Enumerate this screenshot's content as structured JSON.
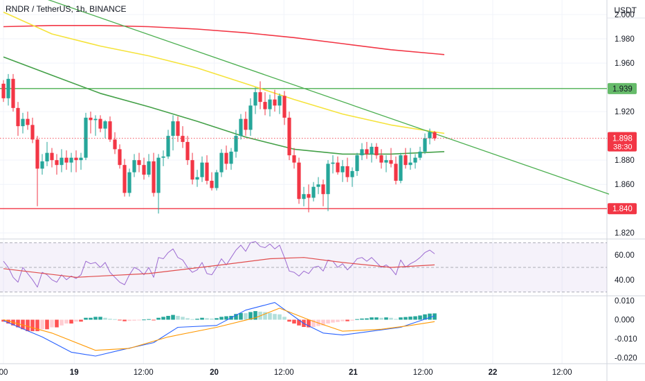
{
  "header": {
    "symbol": "RNDR / TetherUS, 1h, BINANCE",
    "quote_currency": "USDT"
  },
  "colors": {
    "up": "#26a69a",
    "down": "#f23645",
    "ma_red": "#f23645",
    "ma_yellow": "#f5e33b",
    "ma_green": "#43a047",
    "trend": "#4caf50",
    "rsi": "#9c6ad1",
    "rsi_ma": "#e04c4c",
    "macd": "#2962ff",
    "signal": "#ff9800"
  },
  "chart_data": [
    {
      "type": "candlestick",
      "panel": "price",
      "ylim": [
        1.815,
        2.012
      ],
      "y_ticks": [
        "2.000",
        "1.980",
        "1.960",
        "1.920",
        "1.880",
        "1.860",
        "1.820"
      ],
      "x_ticks": [
        "00",
        "19",
        "12:00",
        "20",
        "12:00",
        "21",
        "12:00",
        "22",
        "12:00"
      ],
      "candles": [
        [
          1.943,
          1.946,
          1.928,
          1.931
        ],
        [
          1.931,
          1.951,
          1.925,
          1.947
        ],
        [
          1.947,
          1.951,
          1.92,
          1.923
        ],
        [
          1.923,
          1.928,
          1.9,
          1.908
        ],
        [
          1.908,
          1.919,
          1.902,
          1.914
        ],
        [
          1.914,
          1.92,
          1.905,
          1.909
        ],
        [
          1.909,
          1.915,
          1.894,
          1.897
        ],
        [
          1.897,
          1.9,
          1.842,
          1.873
        ],
        [
          1.873,
          1.885,
          1.868,
          1.879
        ],
        [
          1.879,
          1.895,
          1.875,
          1.886
        ],
        [
          1.886,
          1.89,
          1.874,
          1.88
        ],
        [
          1.88,
          1.885,
          1.868,
          1.876
        ],
        [
          1.876,
          1.889,
          1.87,
          1.882
        ],
        [
          1.882,
          1.888,
          1.872,
          1.878
        ],
        [
          1.878,
          1.886,
          1.87,
          1.882
        ],
        [
          1.882,
          1.888,
          1.87,
          1.88
        ],
        [
          1.88,
          1.886,
          1.872,
          1.882
        ],
        [
          1.882,
          1.919,
          1.88,
          1.915
        ],
        [
          1.915,
          1.92,
          1.902,
          1.913
        ],
        [
          1.913,
          1.917,
          1.9,
          1.914
        ],
        [
          1.914,
          1.917,
          1.903,
          1.906
        ],
        [
          1.906,
          1.913,
          1.898,
          1.912
        ],
        [
          1.912,
          1.916,
          1.895,
          1.897
        ],
        [
          1.897,
          1.903,
          1.885,
          1.889
        ],
        [
          1.889,
          1.893,
          1.873,
          1.876
        ],
        [
          1.876,
          1.881,
          1.85,
          1.853
        ],
        [
          1.853,
          1.873,
          1.85,
          1.87
        ],
        [
          1.87,
          1.885,
          1.866,
          1.88
        ],
        [
          1.88,
          1.886,
          1.87,
          1.876
        ],
        [
          1.876,
          1.882,
          1.864,
          1.868
        ],
        [
          1.868,
          1.885,
          1.866,
          1.879
        ],
        [
          1.879,
          1.886,
          1.85,
          1.853
        ],
        [
          1.853,
          1.885,
          1.836,
          1.882
        ],
        [
          1.882,
          1.888,
          1.875,
          1.883
        ],
        [
          1.883,
          1.905,
          1.881,
          1.9
        ],
        [
          1.9,
          1.917,
          1.888,
          1.912
        ],
        [
          1.912,
          1.916,
          1.895,
          1.9
        ],
        [
          1.9,
          1.908,
          1.89,
          1.895
        ],
        [
          1.895,
          1.9,
          1.876,
          1.88
        ],
        [
          1.88,
          1.886,
          1.86,
          1.864
        ],
        [
          1.864,
          1.872,
          1.858,
          1.866
        ],
        [
          1.866,
          1.883,
          1.862,
          1.878
        ],
        [
          1.878,
          1.884,
          1.86,
          1.863
        ],
        [
          1.863,
          1.87,
          1.855,
          1.857
        ],
        [
          1.857,
          1.872,
          1.855,
          1.87
        ],
        [
          1.87,
          1.889,
          1.866,
          1.886
        ],
        [
          1.886,
          1.892,
          1.872,
          1.877
        ],
        [
          1.877,
          1.89,
          1.872,
          1.887
        ],
        [
          1.887,
          1.905,
          1.882,
          1.9
        ],
        [
          1.9,
          1.918,
          1.897,
          1.914
        ],
        [
          1.914,
          1.92,
          1.9,
          1.905
        ],
        [
          1.905,
          1.931,
          1.9,
          1.925
        ],
        [
          1.925,
          1.94,
          1.918,
          1.936
        ],
        [
          1.936,
          1.945,
          1.922,
          1.928
        ],
        [
          1.928,
          1.936,
          1.917,
          1.922
        ],
        [
          1.922,
          1.934,
          1.916,
          1.93
        ],
        [
          1.93,
          1.938,
          1.92,
          1.925
        ],
        [
          1.925,
          1.935,
          1.918,
          1.933
        ],
        [
          1.933,
          1.937,
          1.909,
          1.915
        ],
        [
          1.915,
          1.92,
          1.88,
          1.884
        ],
        [
          1.884,
          1.89,
          1.873,
          1.878
        ],
        [
          1.878,
          1.882,
          1.844,
          1.848
        ],
        [
          1.848,
          1.858,
          1.842,
          1.852
        ],
        [
          1.852,
          1.86,
          1.837,
          1.849
        ],
        [
          1.849,
          1.862,
          1.846,
          1.858
        ],
        [
          1.858,
          1.866,
          1.852,
          1.86
        ],
        [
          1.86,
          1.864,
          1.842,
          1.852
        ],
        [
          1.852,
          1.88,
          1.838,
          1.877
        ],
        [
          1.877,
          1.884,
          1.869,
          1.878
        ],
        [
          1.878,
          1.883,
          1.868,
          1.87
        ],
        [
          1.87,
          1.88,
          1.862,
          1.875
        ],
        [
          1.875,
          1.882,
          1.862,
          1.866
        ],
        [
          1.866,
          1.874,
          1.858,
          1.871
        ],
        [
          1.871,
          1.886,
          1.867,
          1.884
        ],
        [
          1.884,
          1.894,
          1.88,
          1.889
        ],
        [
          1.889,
          1.895,
          1.881,
          1.885
        ],
        [
          1.885,
          1.894,
          1.878,
          1.891
        ],
        [
          1.891,
          1.894,
          1.881,
          1.884
        ],
        [
          1.884,
          1.889,
          1.873,
          1.878
        ],
        [
          1.878,
          1.884,
          1.87,
          1.88
        ],
        [
          1.88,
          1.89,
          1.874,
          1.877
        ],
        [
          1.877,
          1.883,
          1.86,
          1.863
        ],
        [
          1.863,
          1.886,
          1.861,
          1.884
        ],
        [
          1.884,
          1.89,
          1.873,
          1.876
        ],
        [
          1.876,
          1.89,
          1.872,
          1.878
        ],
        [
          1.878,
          1.885,
          1.873,
          1.882
        ],
        [
          1.882,
          1.891,
          1.88,
          1.887
        ],
        [
          1.887,
          1.902,
          1.885,
          1.898
        ],
        [
          1.898,
          1.906,
          1.893,
          1.903
        ],
        [
          1.903,
          1.904,
          1.896,
          1.898
        ]
      ],
      "ma_red_200": [
        [
          0,
          1.99
        ],
        [
          10,
          1.991
        ],
        [
          20,
          1.991
        ],
        [
          30,
          1.99
        ],
        [
          40,
          1.988
        ],
        [
          50,
          1.985
        ],
        [
          60,
          1.981
        ],
        [
          70,
          1.976
        ],
        [
          80,
          1.971
        ],
        [
          91,
          1.967
        ]
      ],
      "ma_yellow_100": [
        [
          0,
          2.002
        ],
        [
          10,
          1.984
        ],
        [
          20,
          1.974
        ],
        [
          30,
          1.966
        ],
        [
          40,
          1.956
        ],
        [
          50,
          1.943
        ],
        [
          60,
          1.93
        ],
        [
          70,
          1.918
        ],
        [
          80,
          1.909
        ],
        [
          91,
          1.902
        ]
      ],
      "ma_green_50": [
        [
          0,
          1.965
        ],
        [
          10,
          1.95
        ],
        [
          20,
          1.935
        ],
        [
          30,
          1.924
        ],
        [
          40,
          1.912
        ],
        [
          50,
          1.899
        ],
        [
          60,
          1.889
        ],
        [
          70,
          1.885
        ],
        [
          80,
          1.885
        ],
        [
          91,
          1.887
        ]
      ],
      "trendline": [
        [
          0,
          2.025
        ],
        [
          125,
          1.852
        ]
      ],
      "horizontal_levels": [
        {
          "price": 1.939,
          "label": "1.939",
          "color": "#4caf50"
        },
        {
          "price": 1.84,
          "label": "1.840",
          "color": "#f23645"
        }
      ],
      "last_price": {
        "price": 1.898,
        "label": "1.898",
        "countdown": "38:30"
      }
    },
    {
      "type": "line",
      "panel": "rsi",
      "ylim": [
        27,
        73
      ],
      "y_ticks": [
        "60.00",
        "40.00"
      ],
      "bands": [
        70,
        50,
        30
      ],
      "rsi": [
        55,
        50,
        42,
        38,
        50,
        45,
        40,
        34,
        46,
        44,
        40,
        38,
        44,
        40,
        43,
        41,
        44,
        55,
        53,
        54,
        50,
        54,
        46,
        42,
        38,
        36,
        44,
        50,
        48,
        44,
        50,
        42,
        58,
        57,
        62,
        65,
        58,
        56,
        50,
        46,
        48,
        54,
        45,
        44,
        50,
        57,
        52,
        58,
        64,
        68,
        63,
        70,
        71,
        67,
        66,
        69,
        65,
        68,
        58,
        47,
        46,
        43,
        47,
        45,
        50,
        51,
        47,
        56,
        55,
        50,
        53,
        48,
        52,
        57,
        58,
        55,
        58,
        54,
        50,
        52,
        49,
        44,
        56,
        50,
        53,
        55,
        58,
        62,
        64,
        61
      ],
      "rsi_ma": [
        [
          0,
          49
        ],
        [
          15,
          42
        ],
        [
          30,
          45
        ],
        [
          45,
          52
        ],
        [
          55,
          57
        ],
        [
          62,
          58
        ],
        [
          70,
          54
        ],
        [
          80,
          50
        ],
        [
          89,
          52
        ]
      ]
    },
    {
      "type": "bar",
      "panel": "macd",
      "ylim": [
        -0.023,
        0.0125
      ],
      "y_ticks": [
        "0.010",
        "0.000",
        "-0.010",
        "-0.020"
      ],
      "histogram": [
        -0.001,
        -0.002,
        -0.003,
        -0.004,
        -0.005,
        -0.006,
        -0.006,
        -0.006,
        -0.005,
        -0.005,
        -0.004,
        -0.004,
        -0.003,
        -0.002,
        -0.002,
        -0.001,
        -0.001,
        0.001,
        0.001,
        0.0015,
        0.0015,
        0.001,
        0.0005,
        0.0003,
        -0.0003,
        -0.0008,
        -0.0006,
        -0.0005,
        -0.0002,
        0.0001,
        0.0003,
        -0.0003,
        0.001,
        0.0015,
        0.002,
        0.0025,
        0.002,
        0.0015,
        0.0008,
        0.0003,
        0.0005,
        0.001,
        0.0008,
        0.0006,
        0.0008,
        0.0015,
        0.0018,
        0.002,
        0.003,
        0.0035,
        0.0034,
        0.004,
        0.0045,
        0.0042,
        0.004,
        0.0035,
        0.003,
        0.0028,
        0.0015,
        -0.001,
        -0.002,
        -0.003,
        -0.0038,
        -0.004,
        -0.0038,
        -0.0033,
        -0.003,
        -0.002,
        -0.0015,
        -0.0012,
        -0.0008,
        -0.0008,
        -0.0005,
        0.0003,
        0.0006,
        0.0007,
        0.0012,
        0.0012,
        0.001,
        0.0012,
        0.001,
        0.0004,
        0.0012,
        0.0014,
        0.0016,
        0.0018,
        0.0022,
        0.0028,
        0.0032,
        0.0033
      ],
      "macd": [
        [
          0,
          -0.0005
        ],
        [
          8,
          -0.009
        ],
        [
          14,
          -0.017
        ],
        [
          19,
          -0.019
        ],
        [
          24,
          -0.016
        ],
        [
          31,
          -0.012
        ],
        [
          36,
          -0.004
        ],
        [
          44,
          -0.003
        ],
        [
          50,
          0.005
        ],
        [
          56,
          0.009
        ],
        [
          62,
          -0.002
        ],
        [
          66,
          -0.007
        ],
        [
          70,
          -0.008
        ],
        [
          76,
          -0.006
        ],
        [
          82,
          -0.004
        ],
        [
          89,
          0.002
        ]
      ],
      "signal": [
        [
          0,
          0.0
        ],
        [
          10,
          -0.007
        ],
        [
          19,
          -0.016
        ],
        [
          26,
          -0.015
        ],
        [
          34,
          -0.009
        ],
        [
          44,
          -0.004
        ],
        [
          52,
          0.001
        ],
        [
          57,
          0.006
        ],
        [
          63,
          0.0
        ],
        [
          70,
          -0.006
        ],
        [
          78,
          -0.005
        ],
        [
          84,
          -0.003
        ],
        [
          89,
          -0.001
        ]
      ]
    }
  ]
}
